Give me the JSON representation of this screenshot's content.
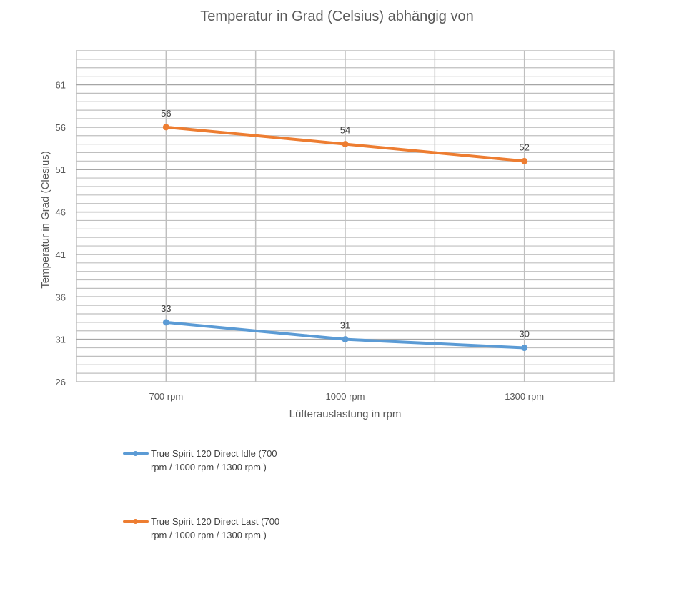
{
  "chart_data": {
    "type": "line",
    "title": "Temperatur in Grad (Celsius) abhängig von",
    "xlabel": "Lüfterauslastung in rpm",
    "ylabel": "Temperatur in Grad (Clesius)",
    "categories": [
      "700 rpm",
      "1000 rpm",
      "1300 rpm"
    ],
    "ylim": [
      26,
      65
    ],
    "yticks": [
      26,
      31,
      36,
      41,
      46,
      51,
      56,
      61
    ],
    "grid": true,
    "legend_position": "bottom-left",
    "series": [
      {
        "name": "True Spirit 120 Direct Idle (700 rpm / 1000 rpm / 1300 rpm )",
        "values": [
          33,
          31,
          30
        ],
        "color": "#5B9BD5"
      },
      {
        "name": "True Spirit 120 Direct Last (700 rpm / 1000 rpm / 1300 rpm )",
        "values": [
          56,
          54,
          52
        ],
        "color": "#ED7D31"
      }
    ]
  }
}
